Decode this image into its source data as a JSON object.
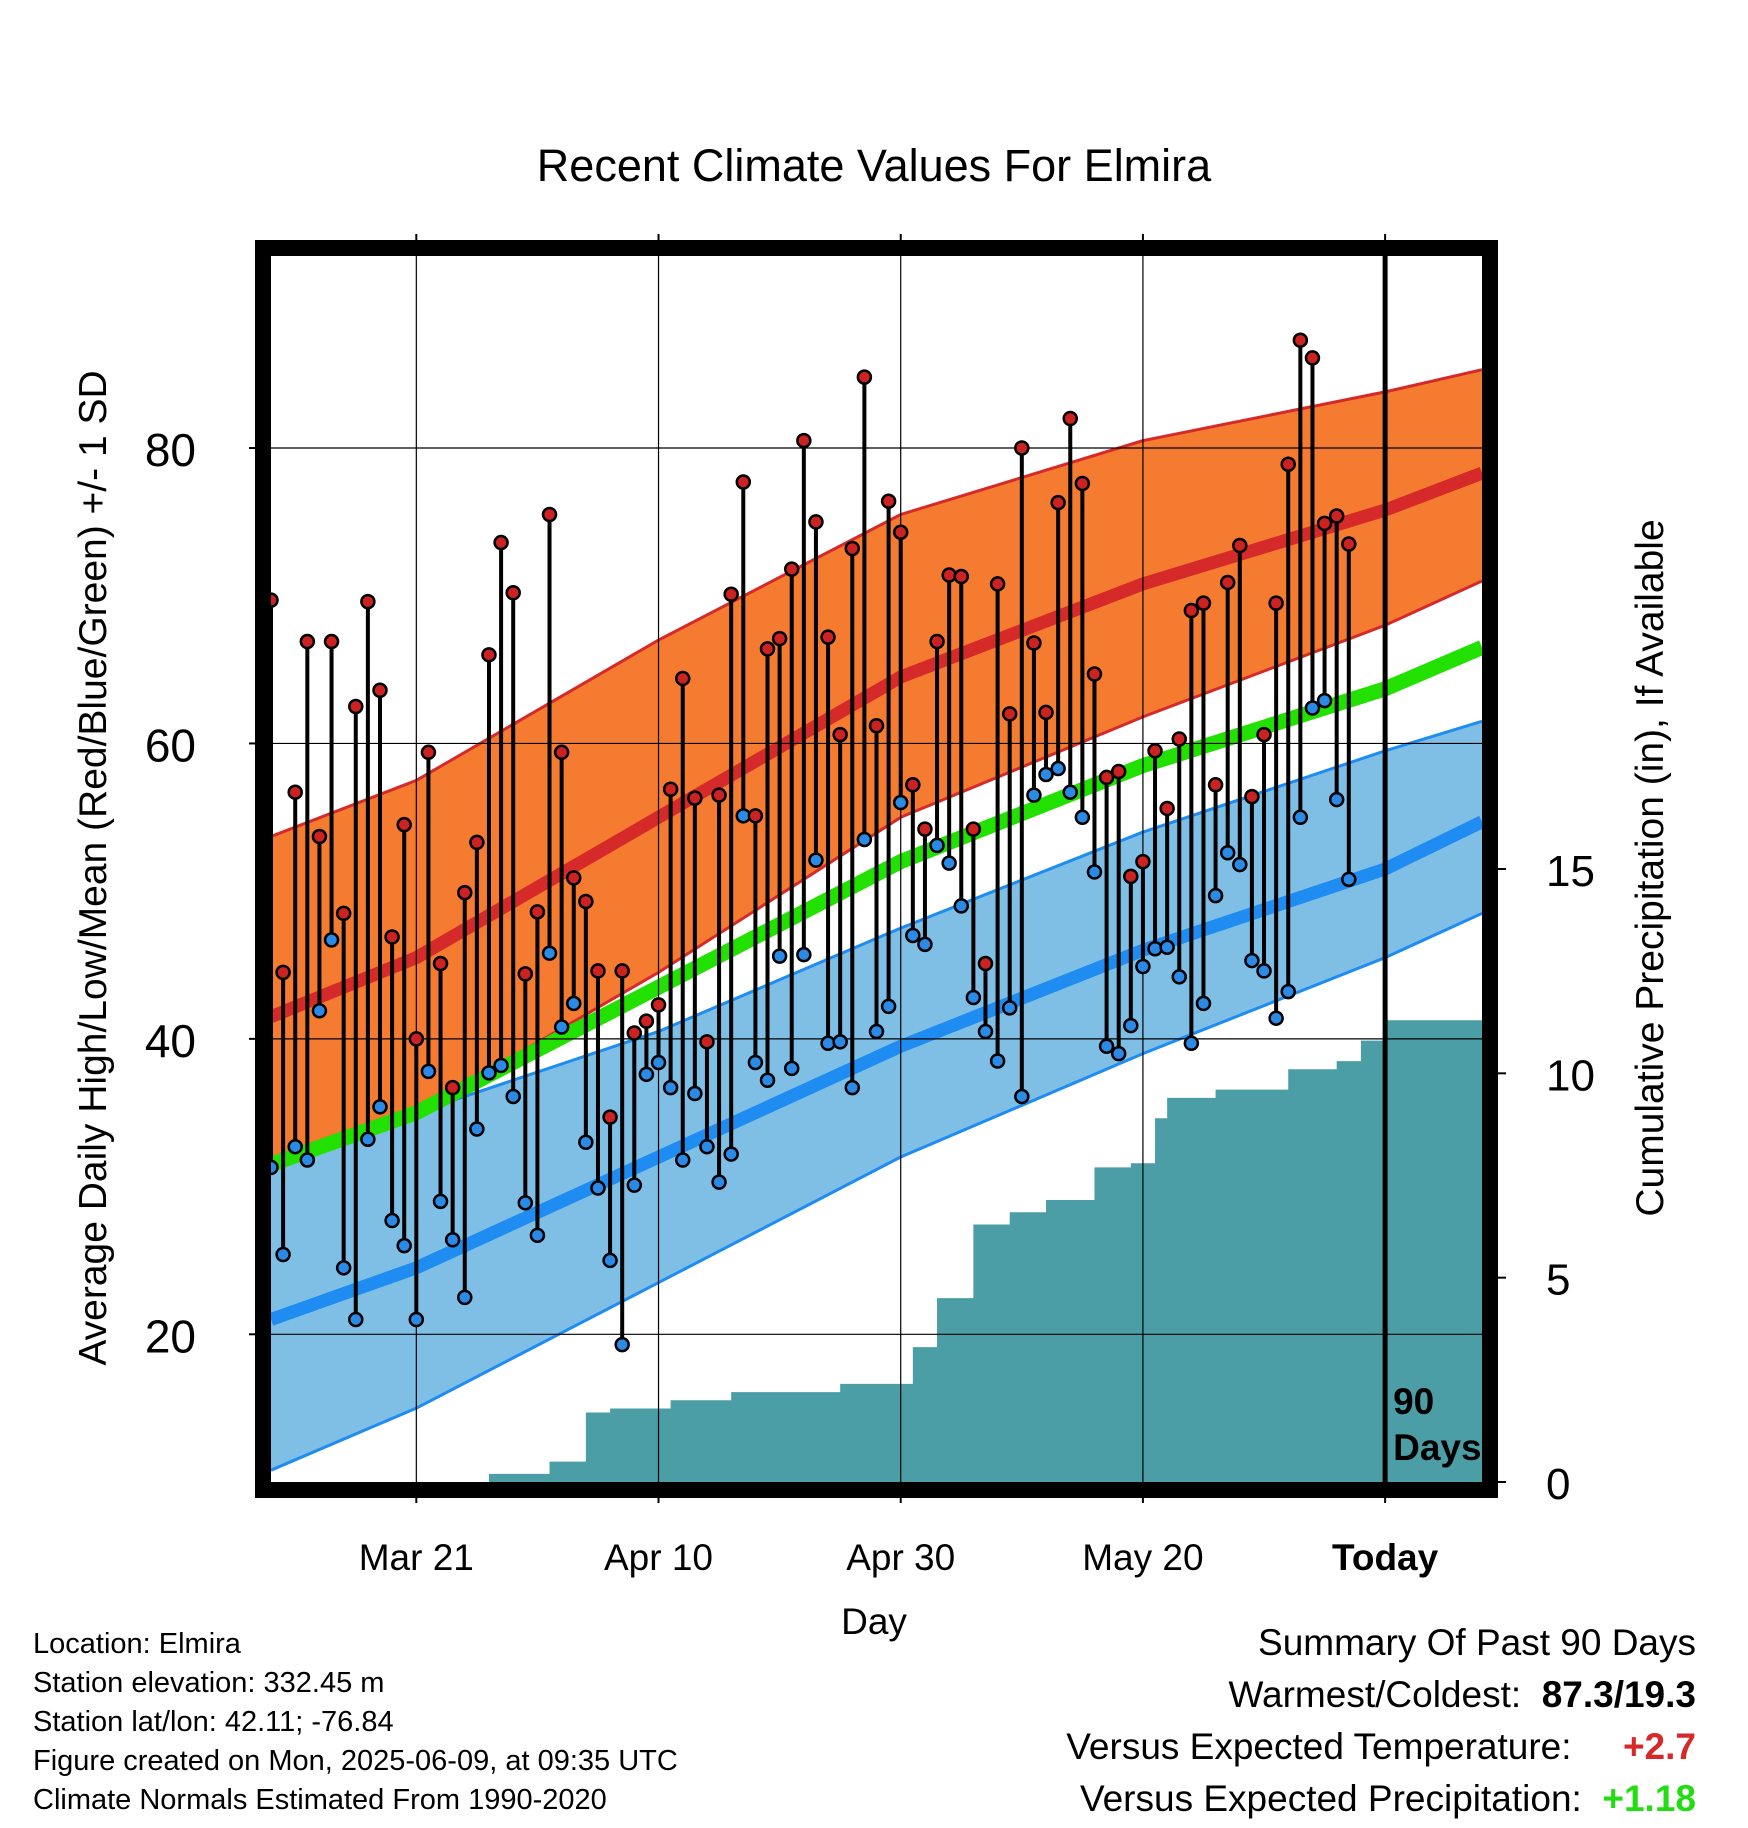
{
  "chart_data": {
    "type": "line",
    "title": "Recent Climate Values For Elmira",
    "xlabel": "Day",
    "ylabel": "Average Daily High/Low/Mean (Red/Blue/Green) +/- 1 SD",
    "y2label": "Cumulative Precipitation (in), If Available",
    "x_range": [
      "2025-03-09",
      "2025-06-17"
    ],
    "x_ticks": [
      {
        "date": "2025-03-21",
        "label": "Mar 21"
      },
      {
        "date": "2025-04-10",
        "label": "Apr 10"
      },
      {
        "date": "2025-04-30",
        "label": "Apr 30"
      },
      {
        "date": "2025-05-20",
        "label": "May 20"
      },
      {
        "date": "2025-06-09",
        "label": "Today"
      }
    ],
    "ylim": [
      10,
      93
    ],
    "yticks": [
      20,
      40,
      60,
      80
    ],
    "y2lim": [
      0,
      30
    ],
    "y2ticks": [
      0,
      5,
      10,
      15
    ],
    "grid": true,
    "today": "2025-06-09",
    "period_label": "90\nDays",
    "colors": {
      "high_band": "#f47b2f",
      "high_line": "#d62a2a",
      "low_band": "#7fbfe6",
      "low_line": "#1e8cf0",
      "mean_line": "#22e000",
      "precip": "#4b9ea6",
      "high_dot": "#cc2222",
      "low_dot": "#2a8ae6"
    },
    "normals": {
      "dates": [
        "2025-03-09",
        "2025-03-21",
        "2025-04-10",
        "2025-04-30",
        "2025-05-20",
        "2025-06-09",
        "2025-06-17"
      ],
      "high_mean": [
        41.5,
        45.5,
        55.0,
        64.5,
        70.8,
        75.8,
        78.3
      ],
      "high_upper": [
        53.7,
        57.5,
        67.0,
        75.5,
        80.5,
        83.8,
        85.3
      ],
      "high_lower": [
        31.5,
        35.0,
        44.5,
        55.0,
        61.8,
        68.0,
        71.0
      ],
      "low_mean": [
        21.0,
        24.5,
        32.0,
        39.5,
        46.0,
        51.5,
        54.7
      ],
      "low_upper": [
        32.5,
        35.0,
        40.5,
        47.5,
        54.0,
        59.5,
        61.5
      ],
      "low_lower": [
        10.8,
        15.0,
        23.5,
        32.0,
        39.0,
        45.5,
        48.5
      ],
      "mean": [
        31.5,
        35.0,
        43.5,
        52.0,
        58.5,
        63.7,
        66.5
      ]
    },
    "daily_start": "2025-03-09",
    "daily_high": [
      69.7,
      44.5,
      56.7,
      66.9,
      53.7,
      66.9,
      48.5,
      62.5,
      69.6,
      63.6,
      46.9,
      54.5,
      40.0,
      59.4,
      45.1,
      36.7,
      49.9,
      53.3,
      66.0,
      73.6,
      70.2,
      44.4,
      48.6,
      75.5,
      59.4,
      50.9,
      49.3,
      44.6,
      34.7,
      44.6,
      40.4,
      41.2,
      42.3,
      56.9,
      64.4,
      56.3,
      39.8,
      56.5,
      70.1,
      77.7,
      55.1,
      66.4,
      67.1,
      71.8,
      80.5,
      75.0,
      67.2,
      60.6,
      73.2,
      84.8,
      61.2,
      76.4,
      74.3,
      57.2,
      54.2,
      66.9,
      71.4,
      71.3,
      54.2,
      45.1,
      70.8,
      62.0,
      80.0,
      66.8,
      62.1,
      76.3,
      82.0,
      77.6,
      64.7,
      57.7,
      58.1,
      51.0,
      52.0,
      59.5,
      55.6,
      60.3,
      69.0,
      69.5,
      57.2,
      70.9,
      73.4,
      56.4,
      60.6,
      69.5,
      78.9,
      87.3,
      86.1,
      74.9,
      75.4,
      73.5
    ],
    "daily_low": [
      31.3,
      25.4,
      32.7,
      31.8,
      41.9,
      46.7,
      24.5,
      21.0,
      33.2,
      35.4,
      27.7,
      26.0,
      21.0,
      37.8,
      29.0,
      26.4,
      22.5,
      33.9,
      37.7,
      38.2,
      36.1,
      28.9,
      26.7,
      45.8,
      40.8,
      42.4,
      33.0,
      29.9,
      25.0,
      19.3,
      30.1,
      37.6,
      38.4,
      36.7,
      31.8,
      36.3,
      32.7,
      30.3,
      32.2,
      55.1,
      38.4,
      37.2,
      45.6,
      38.0,
      45.7,
      52.1,
      39.7,
      39.8,
      36.7,
      53.5,
      40.5,
      42.2,
      56.0,
      47.0,
      46.4,
      53.1,
      51.9,
      49.0,
      42.8,
      40.5,
      38.5,
      42.1,
      36.1,
      56.5,
      57.9,
      58.3,
      56.7,
      55.0,
      51.3,
      39.5,
      39.0,
      40.9,
      44.9,
      46.1,
      46.2,
      44.2,
      39.7,
      42.4,
      49.7,
      52.6,
      51.8,
      45.3,
      44.6,
      41.4,
      43.2,
      55.0,
      62.4,
      62.9,
      56.2,
      50.8
    ],
    "precip_dates": [
      "2025-03-09",
      "2025-03-27",
      "2025-04-01",
      "2025-04-04",
      "2025-04-06",
      "2025-04-11",
      "2025-04-16",
      "2025-04-25",
      "2025-05-01",
      "2025-05-03",
      "2025-05-06",
      "2025-05-09",
      "2025-05-12",
      "2025-05-16",
      "2025-05-19",
      "2025-05-21",
      "2025-05-22",
      "2025-05-26",
      "2025-06-01",
      "2025-06-05",
      "2025-06-07",
      "2025-06-09",
      "2025-06-17"
    ],
    "precip_cum": [
      0.0,
      0.2,
      0.5,
      1.7,
      1.8,
      2.0,
      2.2,
      2.4,
      3.3,
      4.5,
      6.3,
      6.6,
      6.9,
      7.7,
      7.8,
      8.9,
      9.4,
      9.6,
      10.1,
      10.3,
      10.8,
      11.3,
      11.3
    ]
  },
  "footer": {
    "location": "Location: Elmira",
    "elevation": "Station elevation: 332.45 m",
    "latlon": "Station lat/lon: 42.11; -76.84",
    "created": "Figure created on Mon, 2025-06-09, at 09:35 UTC",
    "normals": "Climate Normals Estimated From 1990-2020"
  },
  "summary": {
    "title": "Summary Of Past 90 Days",
    "warm_cold_label": "Warmest/Coldest:",
    "warm_cold_value": "87.3/19.3",
    "temp_label": "Versus Expected Temperature:",
    "temp_value": "+2.7",
    "temp_color": "#d62a2a",
    "precip_label": "Versus Expected Precipitation:",
    "precip_value": "+1.18",
    "precip_color": "#22dd11"
  }
}
